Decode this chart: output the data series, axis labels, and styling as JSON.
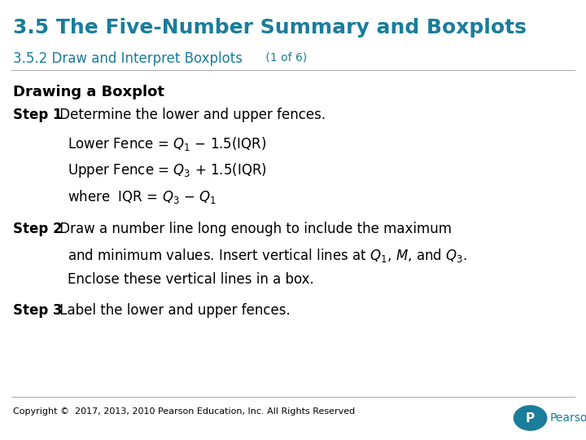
{
  "title": "3.5 The Five-Number Summary and Boxplots",
  "subtitle": "3.5.2 Draw and Interpret Boxplots",
  "subtitle_suffix": " (1 of 6)",
  "title_color": "#1a7d9b",
  "subtitle_color": "#1a7d9b",
  "background_color": "#ffffff",
  "body_text_color": "#000000",
  "section_heading": "Drawing a Boxplot",
  "copyright": "Copyright ©  2017, 2013, 2010 Pearson Education, Inc. All Rights Reserved",
  "pearson_color": "#1a7d9b"
}
